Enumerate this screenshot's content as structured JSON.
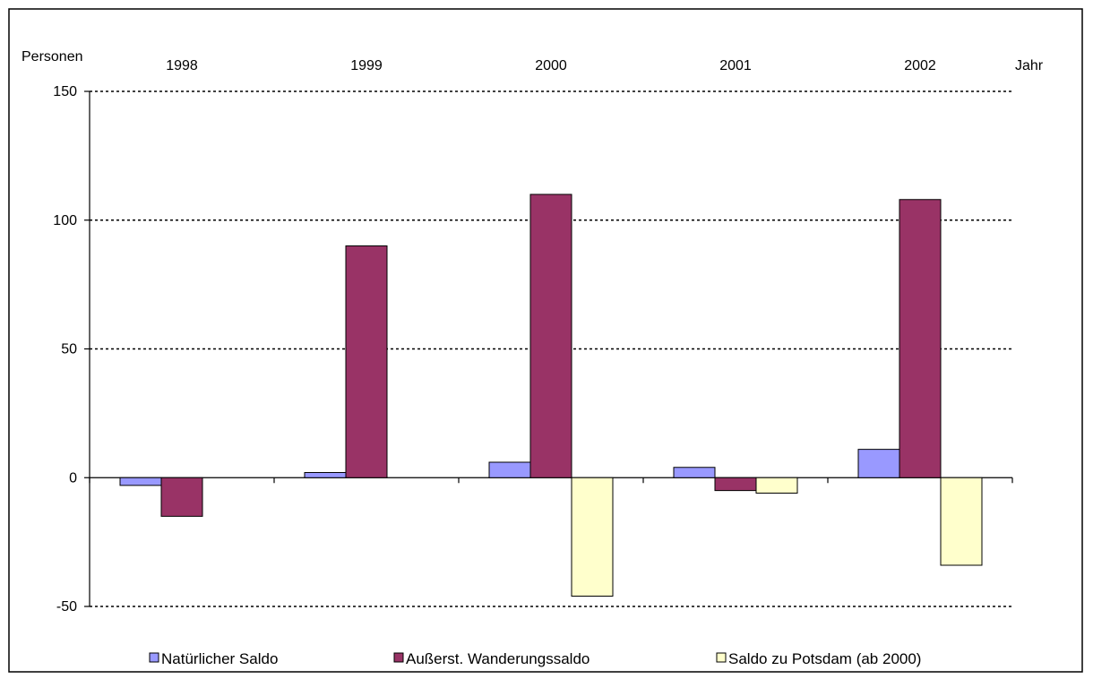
{
  "chart_data": {
    "type": "bar",
    "categories": [
      "1998",
      "1999",
      "2000",
      "2001",
      "2002"
    ],
    "series": [
      {
        "name": "Natürlicher Saldo",
        "color": "#9999ff",
        "values": [
          -3,
          2,
          6,
          4,
          11
        ]
      },
      {
        "name": "Außerst. Wanderungssaldo",
        "color": "#993366",
        "values": [
          -15,
          90,
          110,
          -5,
          108
        ]
      },
      {
        "name": "Saldo zu Potsdam (ab 2000)",
        "color": "#ffffcc",
        "values": [
          null,
          null,
          -46,
          -6,
          -34
        ]
      }
    ],
    "ylabel": "Personen",
    "xlabel": "Jahr",
    "ylim": [
      -50,
      150
    ],
    "yticks": [
      150,
      100,
      50,
      0,
      -50
    ],
    "grid": true,
    "legend_position": "bottom"
  }
}
